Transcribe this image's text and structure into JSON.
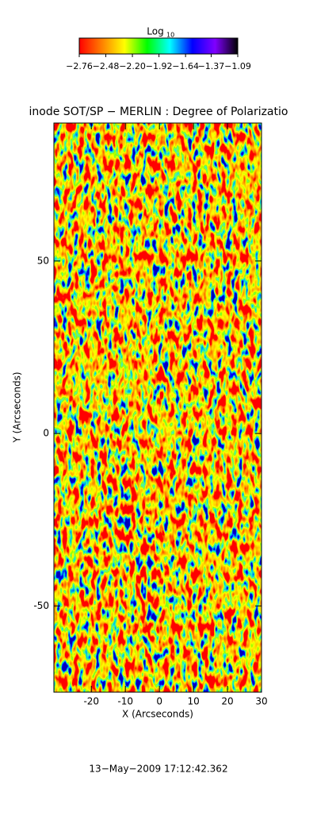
{
  "chart_data": {
    "type": "heatmap",
    "title": "inode SOT/SP − MERLIN : Degree of Polarizatio",
    "x_label": "X (Arcseconds)",
    "y_label": "Y (Arcseconds)",
    "xlim": [
      -31,
      30
    ],
    "xticks": [
      -20,
      -10,
      0,
      10,
      20,
      30
    ],
    "ylim": [
      -75,
      90
    ],
    "yticks": [
      -50,
      0,
      50
    ],
    "colorbar": {
      "title": "Log",
      "title_sub": "10",
      "lim": [
        -2.76,
        -1.09
      ],
      "colors": [
        "#ff0000",
        "#ff8000",
        "#ffff00",
        "#00ff00",
        "#00ffff",
        "#0000ff",
        "#8000ff",
        "#000000"
      ],
      "ticks": [
        {
          "value": -2.76,
          "label": "−2.76"
        },
        {
          "value": -2.48,
          "label": "−2.48"
        },
        {
          "value": -2.2,
          "label": "−2.20"
        },
        {
          "value": -1.92,
          "label": "−1.92"
        },
        {
          "value": -1.64,
          "label": "−1.64"
        },
        {
          "value": -1.37,
          "label": "−1.37"
        },
        {
          "value": -1.09,
          "label": "−1.09"
        }
      ]
    },
    "footer": "13−May−2009 17:12:42.362"
  }
}
